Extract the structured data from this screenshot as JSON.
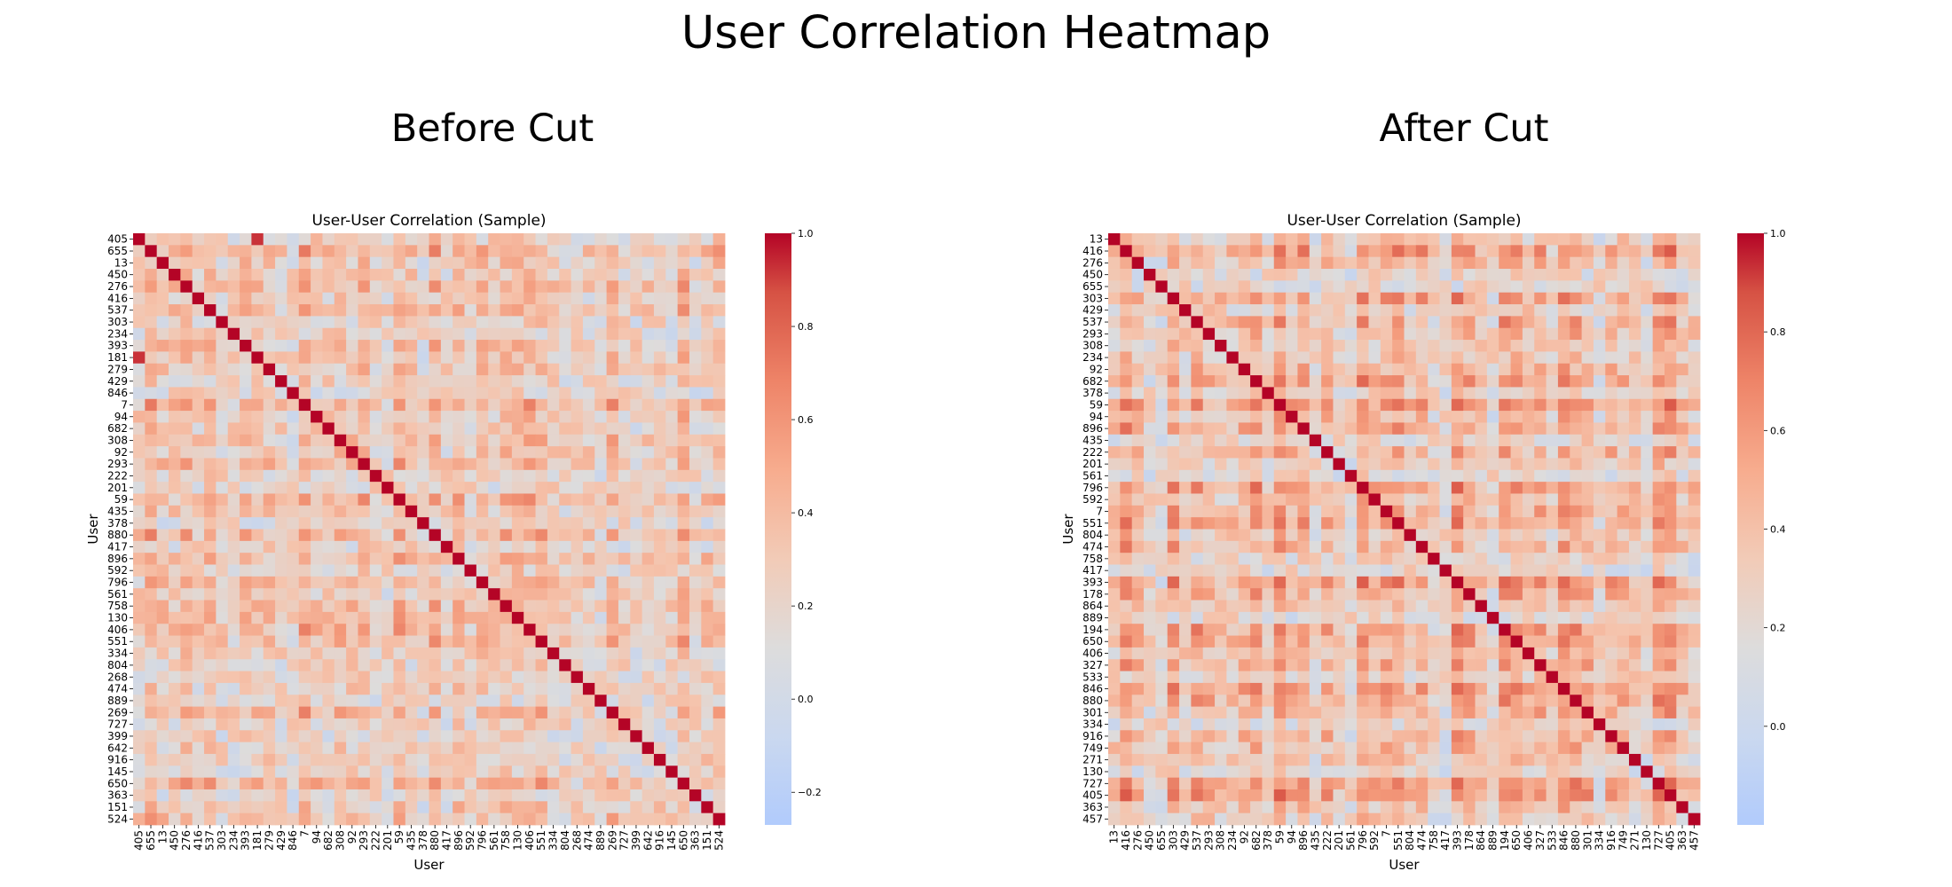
{
  "figure": {
    "title": "User Correlation Heatmap"
  },
  "chart_data": [
    {
      "type": "heatmap",
      "panel_title": "Before Cut",
      "title": "User-User Correlation (Sample)",
      "xlabel": "User",
      "ylabel": "User",
      "users": [
        "405",
        "655",
        "13",
        "450",
        "276",
        "416",
        "537",
        "303",
        "234",
        "393",
        "181",
        "279",
        "429",
        "846",
        "7",
        "94",
        "682",
        "308",
        "92",
        "293",
        "222",
        "201",
        "59",
        "435",
        "378",
        "880",
        "417",
        "896",
        "592",
        "796",
        "561",
        "758",
        "130",
        "406",
        "551",
        "334",
        "804",
        "268",
        "474",
        "889",
        "269",
        "727",
        "399",
        "642",
        "916",
        "145",
        "650",
        "363",
        "151",
        "524"
      ],
      "colorbar": {
        "min": -0.27,
        "max": 1.0,
        "ticks": [
          -0.2,
          0.0,
          0.2,
          0.4,
          0.6,
          0.8,
          1.0
        ]
      },
      "colormap": "coolwarm",
      "diagonal_value": 1.0,
      "off_diagonal_typical_range": [
        -0.2,
        0.8
      ],
      "notable_values": [
        {
          "row": "181",
          "col": "405",
          "value": 0.85
        },
        {
          "row": "405",
          "col": "181",
          "value": 0.85
        }
      ]
    },
    {
      "type": "heatmap",
      "panel_title": "After Cut",
      "title": "User-User Correlation (Sample)",
      "xlabel": "User",
      "ylabel": "User",
      "users": [
        "13",
        "416",
        "276",
        "450",
        "655",
        "303",
        "429",
        "537",
        "293",
        "308",
        "234",
        "92",
        "682",
        "378",
        "59",
        "94",
        "896",
        "435",
        "222",
        "201",
        "561",
        "796",
        "592",
        "7",
        "551",
        "804",
        "474",
        "758",
        "417",
        "393",
        "178",
        "864",
        "889",
        "194",
        "650",
        "406",
        "327",
        "533",
        "846",
        "880",
        "301",
        "334",
        "916",
        "749",
        "271",
        "130",
        "727",
        "405",
        "363",
        "457"
      ],
      "colorbar": {
        "min": -0.2,
        "max": 1.0,
        "ticks": [
          0.0,
          0.2,
          0.4,
          0.6,
          0.8,
          1.0
        ]
      },
      "colormap": "coolwarm",
      "diagonal_value": 1.0,
      "off_diagonal_typical_range": [
        -0.15,
        0.7
      ]
    }
  ]
}
